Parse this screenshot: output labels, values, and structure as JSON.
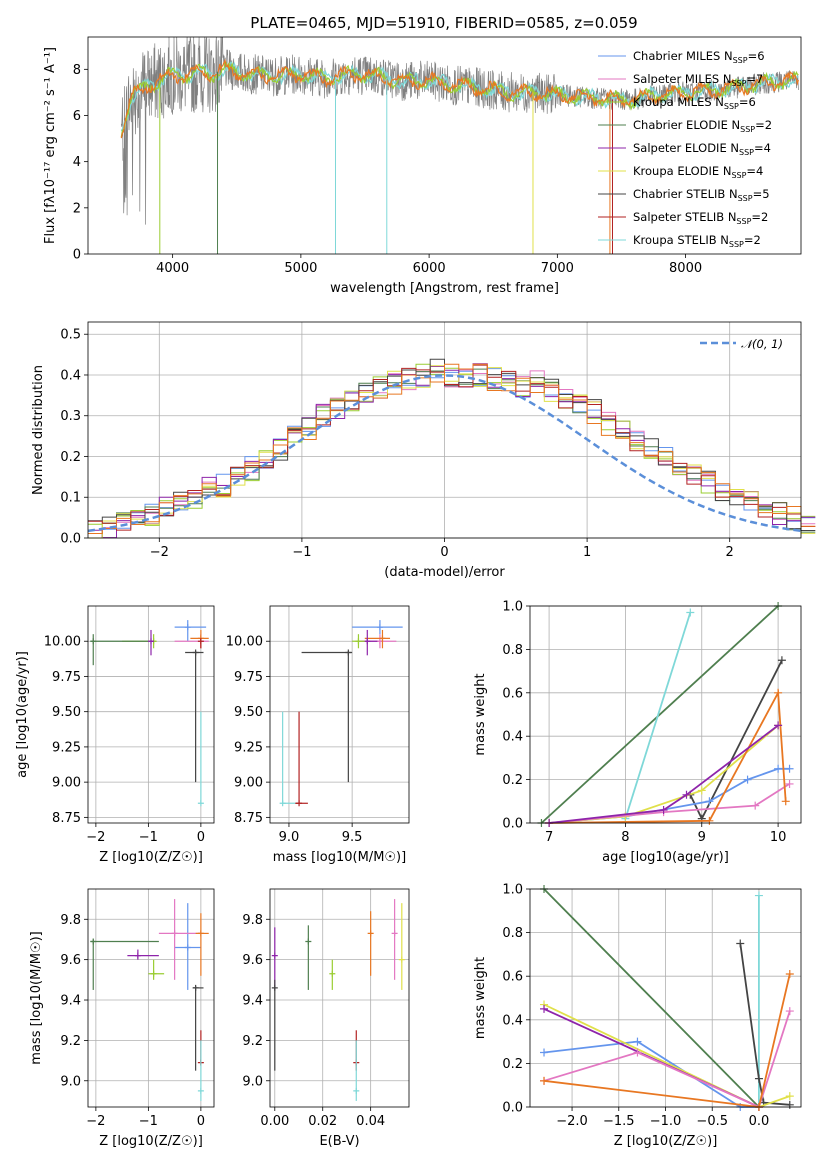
{
  "figure_title": "PLATE=0465, MJD=51910, FIBERID=0585, z=0.059",
  "colors": {
    "Chabrier MILES": "#6495ed",
    "Salpeter MILES": "#e377c2",
    "Kroupa MILES": "#9acd32",
    "Chabrier ELODIE": "#4f7f4f",
    "Salpeter ELODIE": "#8e24aa",
    "Kroupa ELODIE": "#e0e04a",
    "Chabrier STELIB": "#444444",
    "Salpeter STELIB": "#b22222",
    "Kroupa STELIB": "#7fd8d8",
    "orange": "#e87722",
    "gray": "#808080"
  },
  "legend": [
    {
      "model": "Chabrier MILES",
      "nssp": 6
    },
    {
      "model": "Salpeter MILES",
      "nssp": 7
    },
    {
      "model": "Kroupa MILES",
      "nssp": 6
    },
    {
      "model": "Chabrier ELODIE",
      "nssp": 2
    },
    {
      "model": "Salpeter ELODIE",
      "nssp": 4
    },
    {
      "model": "Kroupa ELODIE",
      "nssp": 4
    },
    {
      "model": "Chabrier STELIB",
      "nssp": 5
    },
    {
      "model": "Salpeter STELIB",
      "nssp": 2
    },
    {
      "model": "Kroupa STELIB",
      "nssp": 2
    }
  ],
  "legend_nssp_label": "N",
  "legend_nssp_sub": "SSP",
  "chart_data": [
    {
      "panel": "spectrum",
      "type": "line",
      "xlabel": "wavelength [Angstrom, rest frame]",
      "ylabel": "Flux [fλ10⁻¹⁷ erg cm⁻² s⁻¹ A⁻¹]",
      "xlim": [
        3340,
        8900
      ],
      "ylim": [
        0,
        9.4
      ],
      "xticks": [
        4000,
        5000,
        6000,
        7000,
        8000
      ],
      "yticks": [
        0,
        2,
        4,
        6,
        8
      ],
      "model_curve": {
        "x": [
          3600,
          3650,
          3700,
          3800,
          3900,
          4000,
          4100,
          4200,
          4300,
          4400,
          4500,
          4600,
          4800,
          5000,
          5200,
          5400,
          5600,
          5800,
          6000,
          6200,
          6400,
          6600,
          6800,
          7000,
          7200,
          7400,
          7600,
          7800,
          8000,
          8200,
          8400,
          8600,
          8800
        ],
        "y": [
          5.3,
          6.3,
          6.9,
          7.3,
          7.5,
          7.8,
          7.7,
          7.9,
          7.8,
          8.0,
          7.9,
          7.8,
          7.7,
          7.8,
          7.6,
          7.8,
          7.7,
          7.5,
          7.5,
          7.3,
          7.2,
          7.0,
          7.0,
          6.9,
          6.8,
          6.7,
          6.7,
          6.9,
          7.0,
          7.1,
          7.2,
          7.4,
          7.5
        ]
      },
      "legend_position": "top-right"
    },
    {
      "panel": "residuals",
      "type": "histogram",
      "xlabel": "(data-model)/error",
      "ylabel": "Normed distribution",
      "xlim": [
        -2.5,
        2.5
      ],
      "ylim": [
        0,
        0.53
      ],
      "xticks": [
        -2,
        -1,
        0,
        1,
        2
      ],
      "yticks": [
        0.0,
        0.1,
        0.2,
        0.3,
        0.4,
        0.5
      ],
      "reference": "N(0,1)",
      "bin_width": 0.1,
      "series": [
        {
          "model": "Chabrier MILES",
          "values": [
            0.02,
            0.03,
            0.04,
            0.05,
            0.06,
            0.08,
            0.09,
            0.1,
            0.12,
            0.13,
            0.15,
            0.17,
            0.2,
            0.22,
            0.25,
            0.27,
            0.3,
            0.32,
            0.34,
            0.36,
            0.37,
            0.38,
            0.39,
            0.4,
            0.41,
            0.4,
            0.39,
            0.4,
            0.39,
            0.38,
            0.37,
            0.38,
            0.36,
            0.34,
            0.33,
            0.31,
            0.28,
            0.26,
            0.24,
            0.22,
            0.2,
            0.18,
            0.16,
            0.14,
            0.12,
            0.1,
            0.09,
            0.07,
            0.06,
            0.05,
            0.04
          ]
        }
      ]
    },
    {
      "panel": "age_vs_Z",
      "type": "scatter",
      "xlabel": "Z [log10(Z/Z☉)]",
      "ylabel": "age  [log10(age/yr)]",
      "xlim": [
        -2.15,
        0.25
      ],
      "ylim": [
        8.71,
        10.25
      ],
      "xticks": [
        -2,
        -1,
        0
      ],
      "yticks": [
        8.75,
        9.0,
        9.25,
        9.5,
        9.75,
        10.0
      ]
    },
    {
      "panel": "age_vs_mass",
      "type": "scatter",
      "xlabel": "mass [log10(M/M☉)]",
      "ylabel": "",
      "xlim": [
        8.85,
        9.95
      ],
      "ylim": [
        8.71,
        10.25
      ],
      "xticks": [
        9.0,
        9.5
      ],
      "yticks": [
        8.75,
        9.0,
        9.25,
        9.5,
        9.75,
        10.0
      ]
    },
    {
      "panel": "mass_weight_vs_age",
      "type": "line",
      "xlabel": "age  [log10(age/yr)]",
      "ylabel": "mass weight",
      "xlim": [
        6.75,
        10.3
      ],
      "ylim": [
        0,
        1.0
      ],
      "xticks": [
        7,
        8,
        9,
        10
      ],
      "yticks": [
        0.0,
        0.2,
        0.4,
        0.6,
        0.8,
        1.0
      ],
      "series": [
        {
          "model": "Chabrier ELODIE",
          "x": [
            6.9,
            10.0
          ],
          "y": [
            0.0,
            1.0
          ]
        },
        {
          "model": "Kroupa STELIB",
          "x": [
            8.0,
            8.85
          ],
          "y": [
            0.02,
            0.97
          ]
        },
        {
          "model": "Chabrier STELIB",
          "x": [
            8.85,
            9.0,
            10.05
          ],
          "y": [
            0.13,
            0.02,
            0.75
          ]
        },
        {
          "model": "Chabrier MILES",
          "x": [
            7.0,
            8.0,
            9.1,
            9.6,
            10.0,
            10.15
          ],
          "y": [
            0.0,
            0.03,
            0.1,
            0.2,
            0.25,
            0.25
          ]
        },
        {
          "model": "Kroupa ELODIE",
          "x": [
            7.0,
            8.0,
            9.0,
            10.0
          ],
          "y": [
            0.0,
            0.03,
            0.15,
            0.45
          ]
        },
        {
          "model": "Salpeter MILES",
          "x": [
            7.0,
            8.5,
            9.7,
            10.15
          ],
          "y": [
            0.0,
            0.05,
            0.08,
            0.18
          ]
        },
        {
          "model": "orange",
          "x": [
            7.0,
            9.1,
            10.0,
            10.1
          ],
          "y": [
            0.0,
            0.01,
            0.6,
            0.1
          ]
        },
        {
          "model": "Salpeter ELODIE",
          "x": [
            7.0,
            8.5,
            8.8,
            10.0
          ],
          "y": [
            0.0,
            0.06,
            0.13,
            0.45
          ]
        }
      ]
    },
    {
      "panel": "mass_vs_Z",
      "type": "scatter",
      "xlabel": "Z [log10(Z/Z☉)]",
      "ylabel": "mass [log10(M/M☉)]",
      "xlim": [
        -2.15,
        0.25
      ],
      "ylim": [
        8.87,
        9.95
      ],
      "xticks": [
        -2,
        -1,
        0
      ],
      "yticks": [
        9.0,
        9.2,
        9.4,
        9.6,
        9.8
      ]
    },
    {
      "panel": "mass_vs_EBV",
      "type": "scatter",
      "xlabel": "E(B-V)",
      "ylabel": "",
      "xlim": [
        -0.002,
        0.056
      ],
      "ylim": [
        8.87,
        9.95
      ],
      "xticks": [
        0.0,
        0.02,
        0.04
      ],
      "yticks": [
        9.0,
        9.2,
        9.4,
        9.6,
        9.8
      ]
    },
    {
      "panel": "mass_weight_vs_Z",
      "type": "line",
      "xlabel": "Z [log10(Z/Z☉)]",
      "ylabel": "mass weight",
      "xlim": [
        -2.45,
        0.45
      ],
      "ylim": [
        0,
        1.0
      ],
      "xticks": [
        -2.0,
        -1.5,
        -1.0,
        -0.5,
        0.0
      ],
      "yticks": [
        0.0,
        0.2,
        0.4,
        0.6,
        0.8,
        1.0
      ],
      "series": [
        {
          "model": "Chabrier ELODIE",
          "x": [
            -2.3,
            0.0
          ],
          "y": [
            1.0,
            0.0
          ]
        },
        {
          "model": "Kroupa STELIB",
          "x": [
            0.0,
            0.0
          ],
          "y": [
            0.97,
            0.0
          ]
        },
        {
          "model": "Chabrier STELIB",
          "x": [
            -0.2,
            0.0,
            0.05,
            0.33
          ],
          "y": [
            0.75,
            0.13,
            0.02,
            0.01
          ]
        },
        {
          "model": "Chabrier MILES",
          "x": [
            -2.3,
            -1.3,
            -0.2,
            0.0
          ],
          "y": [
            0.25,
            0.3,
            0.0,
            0.0
          ]
        },
        {
          "model": "Kroupa ELODIE",
          "x": [
            -2.3,
            0.0,
            0.33
          ],
          "y": [
            0.47,
            0.0,
            0.05
          ]
        },
        {
          "model": "Salpeter ELODIE",
          "x": [
            -2.3,
            0.0
          ],
          "y": [
            0.45,
            0.0
          ]
        },
        {
          "model": "Salpeter MILES",
          "x": [
            -2.3,
            -1.3,
            0.0,
            0.33
          ],
          "y": [
            0.12,
            0.25,
            0.0,
            0.44
          ]
        },
        {
          "model": "orange",
          "x": [
            -2.3,
            0.0,
            0.33
          ],
          "y": [
            0.12,
            0.0,
            0.61
          ]
        }
      ]
    }
  ]
}
